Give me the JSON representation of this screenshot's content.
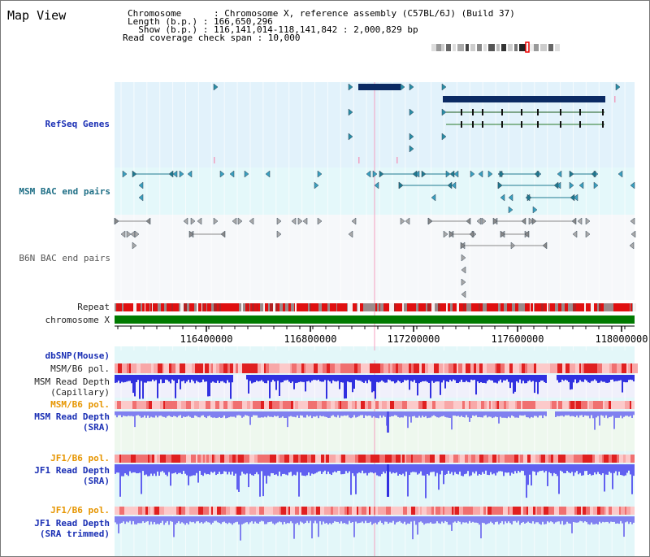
{
  "app": {
    "title": "Map View"
  },
  "info": {
    "chromosome": "Chromosome      : Chromosome X, reference assembly (C57BL/6J) (Build 37)",
    "length": "Length (b.p.) : 166,650,296",
    "show": "  Show (b.p.) : 116,141,014-118,141,842 : 2,000,829 bp",
    "coverage": "Read coverage check span : 10,000"
  },
  "tracks": {
    "refseq": "RefSeq Genes",
    "msm_bac": "MSM BAC end pairs",
    "b6n_bac": "B6N BAC end pairs",
    "repeat": "Repeat",
    "chromosome": "chromosome X",
    "dbsnp": "dbSNP(Mouse)",
    "msm_b6_pol_1": "MSM/B6 pol.",
    "msm_read_depth_1a": "MSM Read Depth",
    "msm_read_depth_1b": "(Capillary)",
    "msm_b6_pol_2": "MSM/B6 pol.",
    "msm_read_depth_2a": "MSM Read Depth",
    "msm_read_depth_2b": "(SRA)",
    "jf1_b6_pol_1": "JF1/B6 pol.",
    "jf1_read_depth_1a": "JF1 Read Depth",
    "jf1_read_depth_1b": "(SRA)",
    "jf1_b6_pol_2": "JF1/B6 pol.",
    "jf1_read_depth_2a": "JF1 Read Depth",
    "jf1_read_depth_2b": "(SRA trimmed)"
  },
  "axis": {
    "ticks": [
      "116400000",
      "116800000",
      "117200000",
      "117600000",
      "118000000"
    ]
  },
  "colors": {
    "refseq_bg": "#e2f2fb",
    "msm_bac_bg": "#e4f8fa",
    "b6n_bg": "#f6f8fa",
    "gene_dark": "#0b2a63",
    "chromosome_bar": "#007a00",
    "msm_label": "#1a4fa8",
    "pol_label_orange": "#e69500",
    "depth_blue": "#2222dd"
  }
}
